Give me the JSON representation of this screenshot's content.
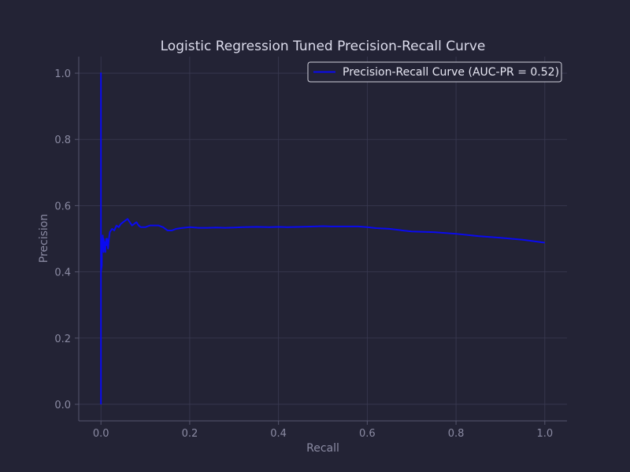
{
  "chart_data": {
    "type": "line",
    "title": "Logistic Regression Tuned Precision-Recall Curve",
    "xlabel": "Recall",
    "ylabel": "Precision",
    "xlim": [
      -0.05,
      1.05
    ],
    "ylim": [
      -0.05,
      1.05
    ],
    "xticks": [
      0.0,
      0.2,
      0.4,
      0.6,
      0.8,
      1.0
    ],
    "yticks": [
      0.0,
      0.2,
      0.4,
      0.6,
      0.8,
      1.0
    ],
    "xtick_labels": [
      "0.0",
      "0.2",
      "0.4",
      "0.6",
      "0.8",
      "1.0"
    ],
    "ytick_labels": [
      "0.0",
      "0.2",
      "0.4",
      "0.6",
      "0.8",
      "1.0"
    ],
    "grid": true,
    "legend_position": "top-right",
    "colors": {
      "background": "#232335",
      "grid": "#3a3a52",
      "spine": "#56566e",
      "line": "#0a0af0"
    },
    "series": [
      {
        "name": "Precision-Recall Curve (AUC-PR = 0.52)",
        "x": [
          0.0,
          0.0,
          0.0,
          0.0,
          0.0,
          0.0,
          0.0,
          0.0,
          0.0,
          0.0,
          0.002,
          0.002,
          0.004,
          0.004,
          0.006,
          0.006,
          0.008,
          0.008,
          0.01,
          0.01,
          0.012,
          0.012,
          0.014,
          0.016,
          0.018,
          0.02,
          0.025,
          0.03,
          0.035,
          0.04,
          0.045,
          0.05,
          0.055,
          0.06,
          0.065,
          0.07,
          0.075,
          0.08,
          0.085,
          0.09,
          0.1,
          0.11,
          0.12,
          0.13,
          0.14,
          0.15,
          0.16,
          0.17,
          0.18,
          0.2,
          0.22,
          0.24,
          0.26,
          0.28,
          0.3,
          0.32,
          0.35,
          0.38,
          0.4,
          0.42,
          0.45,
          0.48,
          0.5,
          0.52,
          0.55,
          0.58,
          0.6,
          0.62,
          0.65,
          0.68,
          0.7,
          0.75,
          0.8,
          0.85,
          0.9,
          0.95,
          1.0
        ],
        "y": [
          0.0,
          0.4,
          0.6,
          0.5,
          0.67,
          0.75,
          0.6,
          1.0,
          0.45,
          0.4,
          0.42,
          0.5,
          0.48,
          0.51,
          0.46,
          0.5,
          0.47,
          0.49,
          0.46,
          0.48,
          0.5,
          0.48,
          0.5,
          0.47,
          0.5,
          0.52,
          0.53,
          0.525,
          0.54,
          0.535,
          0.545,
          0.55,
          0.555,
          0.56,
          0.55,
          0.54,
          0.545,
          0.55,
          0.54,
          0.535,
          0.535,
          0.54,
          0.54,
          0.54,
          0.535,
          0.525,
          0.525,
          0.53,
          0.532,
          0.535,
          0.533,
          0.533,
          0.534,
          0.533,
          0.534,
          0.535,
          0.536,
          0.535,
          0.536,
          0.535,
          0.536,
          0.537,
          0.538,
          0.537,
          0.537,
          0.537,
          0.535,
          0.532,
          0.53,
          0.525,
          0.522,
          0.52,
          0.515,
          0.508,
          0.503,
          0.497,
          0.488
        ]
      }
    ]
  }
}
